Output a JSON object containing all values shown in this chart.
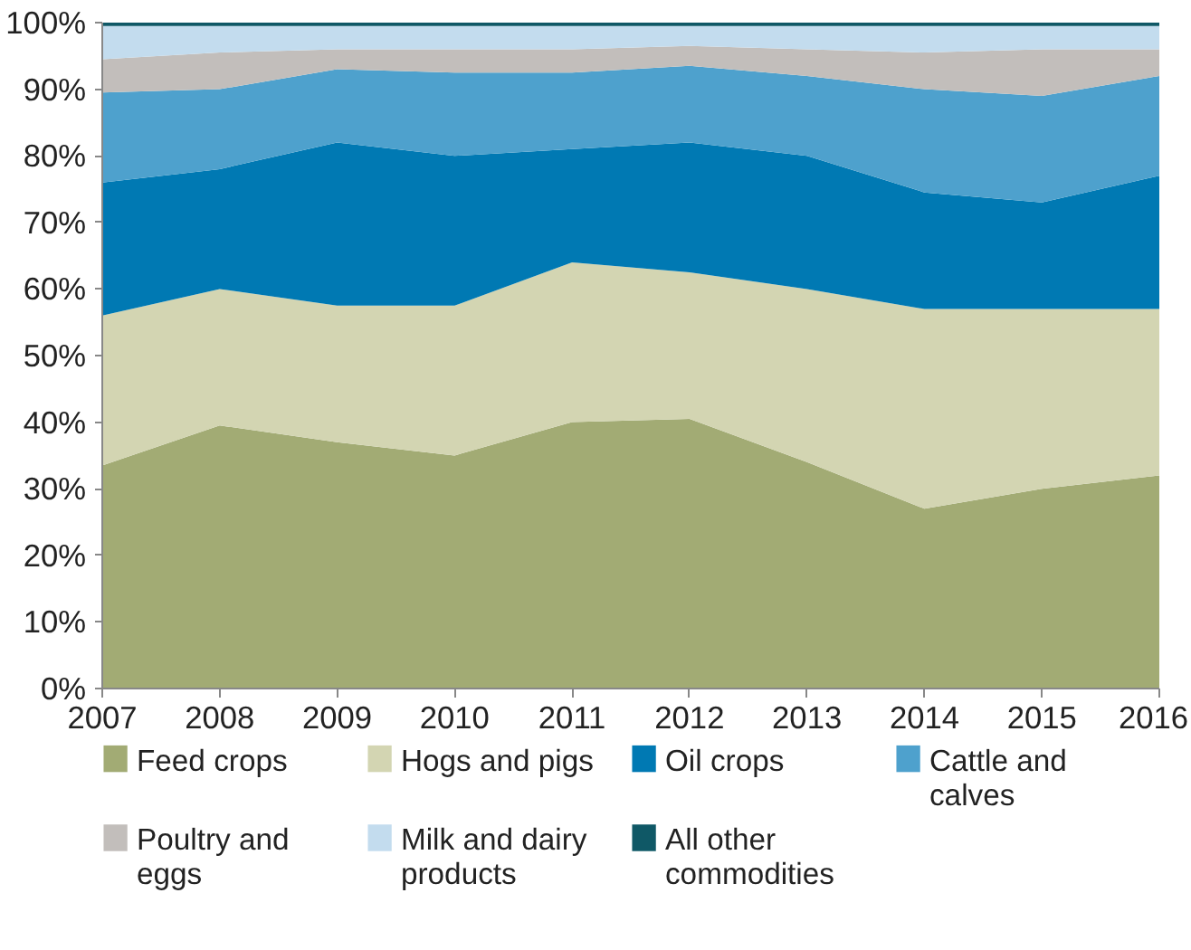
{
  "chart_data": {
    "type": "area",
    "stacked": true,
    "x": [
      2007,
      2008,
      2009,
      2010,
      2011,
      2012,
      2013,
      2014,
      2015,
      2016
    ],
    "series": [
      {
        "name": "Feed crops",
        "color": "#a2ab74",
        "values": [
          33.5,
          39.5,
          37,
          35,
          40,
          40.5,
          34,
          27,
          30,
          32
        ]
      },
      {
        "name": "Hogs and pigs",
        "color": "#d3d5b2",
        "values": [
          22.5,
          20.5,
          20.5,
          22.5,
          24,
          22,
          26,
          30,
          27,
          25
        ]
      },
      {
        "name": "Oil crops",
        "color": "#0079b3",
        "values": [
          20,
          18,
          24.5,
          22.5,
          17,
          19.5,
          20,
          17.5,
          16,
          20
        ]
      },
      {
        "name": "Cattle and calves",
        "color": "#4ea1cd",
        "values": [
          13.5,
          12,
          11,
          12.5,
          11.5,
          11.5,
          12,
          15.5,
          16,
          15
        ]
      },
      {
        "name": "Poultry and eggs",
        "color": "#c2bebb",
        "values": [
          5,
          5.5,
          3,
          3.5,
          3.5,
          3,
          4,
          5.5,
          7,
          4
        ]
      },
      {
        "name": "Milk and dairy products",
        "color": "#c3dcee",
        "values": [
          5,
          4,
          3.5,
          3.5,
          3.5,
          3,
          3.5,
          4,
          3.5,
          3.5
        ]
      },
      {
        "name": "All other commodities",
        "color": "#0f5866",
        "values": [
          0.5,
          0.5,
          0.5,
          0.5,
          0.5,
          0.5,
          0.5,
          0.5,
          0.5,
          0.5
        ]
      }
    ],
    "xlim": [
      2007,
      2016
    ],
    "ylim": [
      0,
      100
    ],
    "xticks": [
      2007,
      2008,
      2009,
      2010,
      2011,
      2012,
      2013,
      2014,
      2015,
      2016
    ],
    "yticks": [
      {
        "value": 0,
        "label": "0%"
      },
      {
        "value": 10,
        "label": "10%"
      },
      {
        "value": 20,
        "label": "20%"
      },
      {
        "value": 30,
        "label": "30%"
      },
      {
        "value": 40,
        "label": "40%"
      },
      {
        "value": 50,
        "label": "50%"
      },
      {
        "value": 60,
        "label": "60%"
      },
      {
        "value": 70,
        "label": "70%"
      },
      {
        "value": 80,
        "label": "80%"
      },
      {
        "value": 90,
        "label": "90%"
      },
      {
        "value": 100,
        "label": "100%"
      }
    ],
    "grid": false,
    "legend": "bottom"
  }
}
